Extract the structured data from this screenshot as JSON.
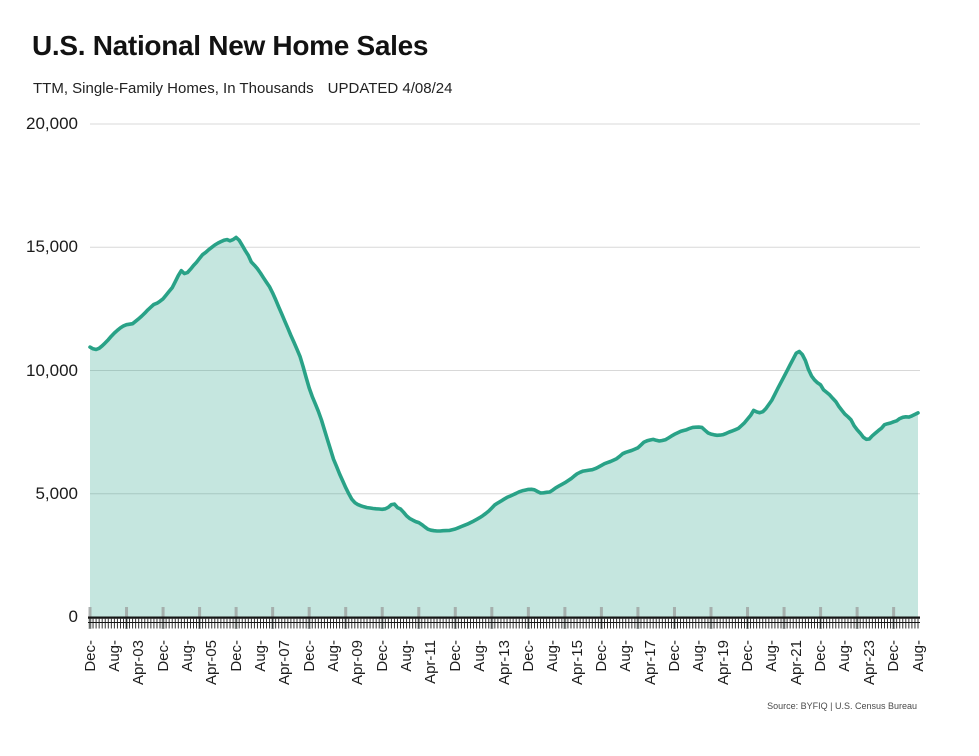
{
  "chart_data": {
    "type": "area",
    "title": "U.S. National New Home Sales",
    "subtitle": "TTM, Single-Family Homes, In Thousands",
    "updated_label": "UPDATED 4/08/24",
    "source": "Source: BYFIQ | U.S. Census Bureau",
    "x_unit": "month",
    "x_start": "Dec-2001",
    "x_end": "Aug-2024",
    "x_label_interval_months": 8,
    "x_tick_labels": [
      "Dec-",
      "Aug-",
      "Apr-03",
      "Dec-",
      "Aug-",
      "Apr-05",
      "Dec-",
      "Aug-",
      "Apr-07",
      "Dec-",
      "Aug-",
      "Apr-09",
      "Dec-",
      "Aug-",
      "Apr-11",
      "Dec-",
      "Aug-",
      "Apr-13",
      "Dec-",
      "Aug-",
      "Apr-15",
      "Dec-",
      "Aug-",
      "Apr-17",
      "Dec-",
      "Aug-",
      "Apr-19",
      "Dec-",
      "Aug-",
      "Apr-21",
      "Dec-",
      "Aug-",
      "Apr-23",
      "Dec-",
      "Aug-"
    ],
    "ylim": [
      0,
      20000
    ],
    "yticks": [
      {
        "value": 0,
        "label": "0"
      },
      {
        "value": 5000,
        "label": "5,000"
      },
      {
        "value": 10000,
        "label": "10,000"
      },
      {
        "value": 15000,
        "label": "15,000"
      },
      {
        "value": 20000,
        "label": "20,000"
      }
    ],
    "grid": "horizontal",
    "legend": "none",
    "colors": {
      "line": "#29a287",
      "fill": "rgba(41,162,135,0.27)",
      "grid": "#d8d8d8",
      "axis": "#151515",
      "major_tick": "#9fa5a3"
    },
    "values": [
      10950,
      10880,
      10850,
      10900,
      11000,
      11120,
      11250,
      11390,
      11520,
      11630,
      11730,
      11810,
      11860,
      11880,
      11900,
      12000,
      12100,
      12210,
      12330,
      12460,
      12570,
      12680,
      12730,
      12810,
      12910,
      13060,
      13210,
      13360,
      13600,
      13850,
      14050,
      13930,
      13970,
      14110,
      14260,
      14390,
      14550,
      14700,
      14790,
      14900,
      15000,
      15090,
      15170,
      15230,
      15280,
      15310,
      15260,
      15310,
      15400,
      15280,
      15080,
      14860,
      14670,
      14400,
      14270,
      14130,
      13950,
      13760,
      13570,
      13390,
      13150,
      12870,
      12580,
      12290,
      12000,
      11710,
      11420,
      11140,
      10860,
      10570,
      10160,
      9720,
      9290,
      8950,
      8650,
      8350,
      8000,
      7600,
      7200,
      6800,
      6400,
      6100,
      5800,
      5520,
      5250,
      5000,
      4780,
      4640,
      4560,
      4510,
      4470,
      4440,
      4420,
      4400,
      4390,
      4380,
      4370,
      4390,
      4450,
      4560,
      4580,
      4440,
      4380,
      4250,
      4100,
      4000,
      3930,
      3870,
      3830,
      3750,
      3650,
      3560,
      3520,
      3500,
      3490,
      3490,
      3500,
      3505,
      3510,
      3540,
      3570,
      3620,
      3670,
      3720,
      3770,
      3830,
      3890,
      3960,
      4030,
      4110,
      4200,
      4300,
      4420,
      4550,
      4630,
      4700,
      4780,
      4850,
      4905,
      4960,
      5020,
      5080,
      5120,
      5150,
      5175,
      5180,
      5160,
      5090,
      5030,
      5040,
      5060,
      5070,
      5150,
      5240,
      5310,
      5380,
      5450,
      5530,
      5610,
      5710,
      5810,
      5870,
      5920,
      5940,
      5960,
      5975,
      6020,
      6080,
      6150,
      6220,
      6265,
      6310,
      6365,
      6420,
      6520,
      6625,
      6680,
      6720,
      6760,
      6810,
      6865,
      6980,
      7095,
      7150,
      7180,
      7205,
      7170,
      7140,
      7160,
      7190,
      7260,
      7340,
      7410,
      7470,
      7530,
      7565,
      7600,
      7650,
      7690,
      7700,
      7705,
      7690,
      7580,
      7470,
      7420,
      7390,
      7370,
      7380,
      7400,
      7450,
      7505,
      7550,
      7600,
      7650,
      7760,
      7880,
      8030,
      8180,
      8380,
      8320,
      8290,
      8330,
      8450,
      8620,
      8800,
      9040,
      9290,
      9520,
      9760,
      9990,
      10230,
      10470,
      10700,
      10770,
      10650,
      10400,
      10050,
      9780,
      9620,
      9500,
      9415,
      9215,
      9110,
      9010,
      8870,
      8740,
      8540,
      8380,
      8230,
      8120,
      8000,
      7760,
      7600,
      7460,
      7300,
      7210,
      7220,
      7350,
      7460,
      7560,
      7660,
      7800,
      7840,
      7870,
      7920,
      7960,
      8050,
      8100,
      8120,
      8110,
      8160,
      8220,
      8280
    ]
  }
}
